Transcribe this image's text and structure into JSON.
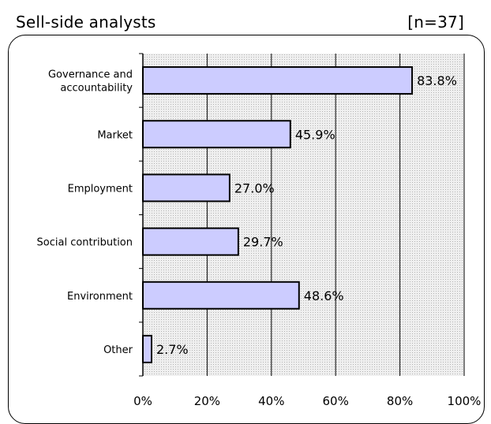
{
  "header": {
    "title": "Sell‐side analysts",
    "sample_size": "[n=37]"
  },
  "chart_data": {
    "type": "bar",
    "orientation": "horizontal",
    "categories": [
      "Governance and accountability",
      "Market",
      "Employment",
      "Social contribution",
      "Environment",
      "Other"
    ],
    "category_lines": [
      [
        "Governance and",
        "accountability"
      ],
      [
        "Market"
      ],
      [
        "Employment"
      ],
      [
        "Social contribution"
      ],
      [
        "Environment"
      ],
      [
        "Other"
      ]
    ],
    "values": [
      83.8,
      45.9,
      27.0,
      29.7,
      48.6,
      2.7
    ],
    "value_labels": [
      "83.8%",
      "45.9%",
      "27.0%",
      "29.7%",
      "48.6%",
      "2.7%"
    ],
    "xlim": [
      0,
      100
    ],
    "x_ticks": [
      0,
      20,
      40,
      60,
      80,
      100
    ],
    "x_tick_labels": [
      "0%",
      "20%",
      "40%",
      "60%",
      "80%",
      "100%"
    ],
    "grid": true,
    "colors": {
      "bar_fill": "#ccccff",
      "bar_stroke": "#000000",
      "plot_background": "#e8e8e8"
    }
  }
}
